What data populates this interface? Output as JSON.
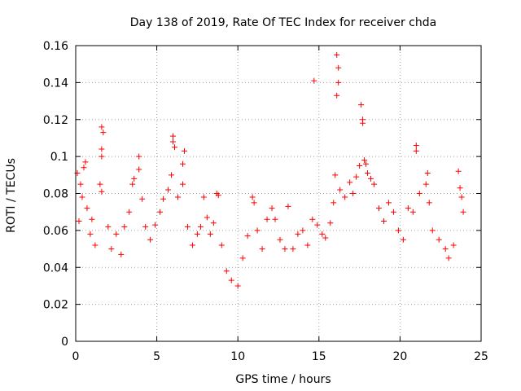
{
  "chart_data": {
    "type": "scatter",
    "title": "Day 138 of 2019, Rate Of TEC Index for receiver chda",
    "xlabel": "GPS time / hours",
    "ylabel": "ROTI / TECUs",
    "xlim": [
      0,
      25
    ],
    "ylim": [
      0,
      0.16
    ],
    "xticks": [
      0,
      5,
      10,
      15,
      20,
      25
    ],
    "xtick_labels": [
      "0",
      "5",
      "10",
      "15",
      "20",
      "25"
    ],
    "yticks": [
      0,
      0.02,
      0.04,
      0.06,
      0.08,
      0.1,
      0.12,
      0.14,
      0.16
    ],
    "ytick_labels": [
      "0",
      "0.02",
      "0.04",
      "0.06",
      "0.08",
      "0.1",
      "0.12",
      "0.14",
      "0.16"
    ],
    "grid": true,
    "marker": "+",
    "series": [
      {
        "name": "ROTI",
        "color": "#ff0000",
        "points": [
          [
            0.1,
            0.091
          ],
          [
            0.3,
            0.085
          ],
          [
            0.5,
            0.094
          ],
          [
            0.6,
            0.097
          ],
          [
            0.4,
            0.078
          ],
          [
            0.2,
            0.065
          ],
          [
            0.7,
            0.072
          ],
          [
            0.9,
            0.058
          ],
          [
            1.0,
            0.066
          ],
          [
            1.2,
            0.052
          ],
          [
            1.5,
            0.085
          ],
          [
            1.6,
            0.081
          ],
          [
            1.6,
            0.116
          ],
          [
            1.7,
            0.113
          ],
          [
            1.6,
            0.104
          ],
          [
            1.6,
            0.1
          ],
          [
            2.0,
            0.062
          ],
          [
            2.2,
            0.05
          ],
          [
            2.5,
            0.058
          ],
          [
            2.8,
            0.047
          ],
          [
            3.0,
            0.062
          ],
          [
            3.3,
            0.07
          ],
          [
            3.5,
            0.085
          ],
          [
            3.6,
            0.088
          ],
          [
            3.9,
            0.1
          ],
          [
            3.9,
            0.093
          ],
          [
            4.1,
            0.077
          ],
          [
            4.3,
            0.062
          ],
          [
            4.6,
            0.055
          ],
          [
            4.9,
            0.063
          ],
          [
            5.2,
            0.07
          ],
          [
            5.4,
            0.077
          ],
          [
            5.7,
            0.082
          ],
          [
            6.0,
            0.111
          ],
          [
            6.0,
            0.108
          ],
          [
            6.1,
            0.105
          ],
          [
            5.9,
            0.09
          ],
          [
            6.3,
            0.078
          ],
          [
            6.6,
            0.096
          ],
          [
            6.7,
            0.103
          ],
          [
            6.6,
            0.085
          ],
          [
            6.9,
            0.062
          ],
          [
            7.2,
            0.052
          ],
          [
            7.5,
            0.058
          ],
          [
            7.7,
            0.062
          ],
          [
            7.9,
            0.078
          ],
          [
            8.1,
            0.067
          ],
          [
            8.3,
            0.058
          ],
          [
            8.5,
            0.064
          ],
          [
            8.7,
            0.08
          ],
          [
            8.8,
            0.079
          ],
          [
            9.0,
            0.052
          ],
          [
            9.3,
            0.038
          ],
          [
            9.6,
            0.033
          ],
          [
            10.0,
            0.03
          ],
          [
            10.3,
            0.045
          ],
          [
            10.6,
            0.057
          ],
          [
            10.9,
            0.078
          ],
          [
            11.0,
            0.075
          ],
          [
            11.2,
            0.06
          ],
          [
            11.5,
            0.05
          ],
          [
            11.8,
            0.066
          ],
          [
            12.1,
            0.072
          ],
          [
            12.3,
            0.066
          ],
          [
            12.6,
            0.055
          ],
          [
            12.9,
            0.05
          ],
          [
            13.1,
            0.073
          ],
          [
            13.4,
            0.05
          ],
          [
            13.7,
            0.058
          ],
          [
            14.0,
            0.06
          ],
          [
            14.3,
            0.052
          ],
          [
            14.6,
            0.066
          ],
          [
            14.7,
            0.141
          ],
          [
            14.9,
            0.063
          ],
          [
            15.2,
            0.058
          ],
          [
            15.4,
            0.056
          ],
          [
            15.7,
            0.064
          ],
          [
            15.9,
            0.075
          ],
          [
            16.0,
            0.09
          ],
          [
            16.1,
            0.155
          ],
          [
            16.2,
            0.148
          ],
          [
            16.2,
            0.14
          ],
          [
            16.1,
            0.133
          ],
          [
            16.3,
            0.082
          ],
          [
            16.6,
            0.078
          ],
          [
            16.9,
            0.086
          ],
          [
            17.1,
            0.08
          ],
          [
            17.3,
            0.089
          ],
          [
            17.5,
            0.095
          ],
          [
            17.6,
            0.128
          ],
          [
            17.7,
            0.12
          ],
          [
            17.7,
            0.118
          ],
          [
            17.8,
            0.098
          ],
          [
            17.9,
            0.096
          ],
          [
            18.0,
            0.091
          ],
          [
            18.2,
            0.088
          ],
          [
            18.4,
            0.085
          ],
          [
            18.7,
            0.072
          ],
          [
            19.0,
            0.065
          ],
          [
            19.3,
            0.075
          ],
          [
            19.6,
            0.07
          ],
          [
            19.9,
            0.06
          ],
          [
            20.2,
            0.055
          ],
          [
            20.5,
            0.072
          ],
          [
            20.8,
            0.07
          ],
          [
            21.0,
            0.106
          ],
          [
            21.0,
            0.103
          ],
          [
            21.2,
            0.08
          ],
          [
            21.6,
            0.085
          ],
          [
            21.7,
            0.091
          ],
          [
            21.8,
            0.075
          ],
          [
            22.0,
            0.06
          ],
          [
            22.4,
            0.055
          ],
          [
            22.8,
            0.05
          ],
          [
            23.0,
            0.045
          ],
          [
            23.3,
            0.052
          ],
          [
            23.6,
            0.092
          ],
          [
            23.7,
            0.083
          ],
          [
            23.8,
            0.078
          ],
          [
            23.9,
            0.07
          ]
        ]
      }
    ]
  },
  "colors": {
    "marker": "#ff0000",
    "grid": "#a0a0a0",
    "axis": "#000000"
  }
}
